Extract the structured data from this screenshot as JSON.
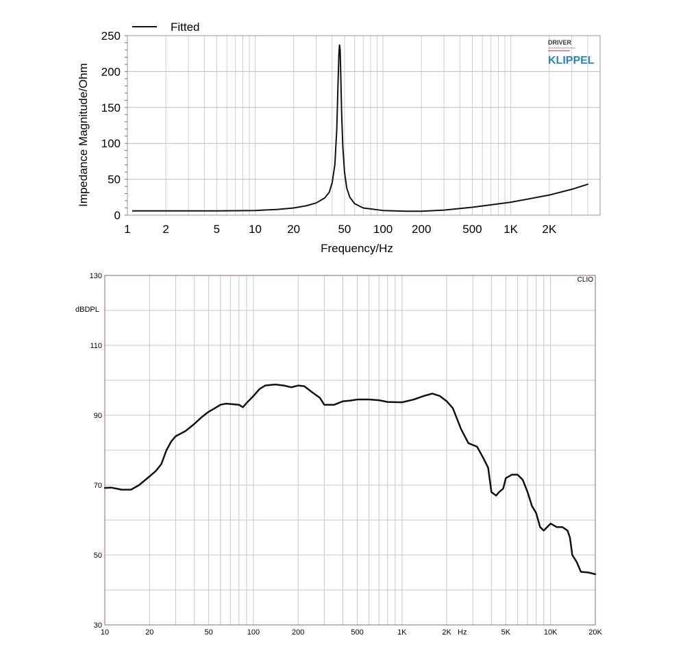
{
  "chart_data": [
    {
      "type": "line",
      "xscale": "log",
      "xlabel": "Frequency/Hz",
      "ylabel": "Impedance Magnitude/Ohm",
      "xlim": [
        1,
        5000
      ],
      "ylim": [
        0,
        250
      ],
      "x_ticks": [
        1,
        2,
        5,
        10,
        20,
        50,
        100,
        200,
        500,
        1000,
        2000
      ],
      "x_tick_labels": [
        "1",
        "2",
        "5",
        "10",
        "20",
        "50",
        "100",
        "200",
        "500",
        "1K",
        "2K"
      ],
      "y_ticks": [
        0,
        50,
        100,
        150,
        200,
        250
      ],
      "y_tick_labels": [
        "0",
        "50",
        "100",
        "150",
        "200",
        "250"
      ],
      "grid": true,
      "legend": "top-left",
      "series": [
        {
          "name": "Fitted",
          "color": "#111111",
          "x": [
            1.1,
            2,
            5,
            10,
            15,
            20,
            25,
            30,
            35,
            38,
            40,
            42,
            43.5,
            44.5,
            45.2,
            45.7,
            46.2,
            46.8,
            47.5,
            48.5,
            50,
            52,
            55,
            60,
            70,
            100,
            150,
            200,
            300,
            500,
            1000,
            2000,
            3000,
            4000
          ],
          "y": [
            6,
            6,
            6,
            6.5,
            8,
            10,
            13,
            17,
            24,
            32,
            45,
            70,
            120,
            185,
            225,
            237,
            230,
            190,
            140,
            95,
            60,
            38,
            25,
            16,
            10,
            6.5,
            5.5,
            5.5,
            7,
            11,
            18,
            28,
            36,
            43
          ]
        }
      ],
      "logo_text": [
        "DRIVER",
        "KLIPPEL"
      ]
    },
    {
      "type": "line",
      "xscale": "log",
      "ylabel": "dBDPL",
      "xlim": [
        10,
        20000
      ],
      "ylim": [
        30,
        130
      ],
      "x_ticks": [
        10,
        20,
        50,
        100,
        200,
        500,
        1000,
        2000,
        5000,
        10000,
        20000
      ],
      "x_tick_labels": [
        "10",
        "20",
        "50",
        "100",
        "200",
        "500",
        "1K",
        "2K",
        "5K",
        "10K",
        "20K"
      ],
      "x_unit": "Hz",
      "y_ticks": [
        30,
        50,
        70,
        90,
        110,
        130
      ],
      "y_tick_labels": [
        "30",
        "50",
        "70",
        "90",
        "110",
        "130"
      ],
      "grid": true,
      "brand": "CLIO",
      "series": [
        {
          "color": "#111111",
          "x": [
            10,
            11,
            12,
            13,
            15,
            17,
            20,
            22,
            24,
            26,
            28,
            30,
            35,
            40,
            45,
            50,
            55,
            60,
            65,
            70,
            80,
            85,
            90,
            100,
            110,
            120,
            140,
            160,
            180,
            200,
            220,
            250,
            280,
            300,
            350,
            400,
            450,
            500,
            600,
            700,
            800,
            1000,
            1200,
            1400,
            1600,
            1800,
            2000,
            2200,
            2500,
            2800,
            3200,
            3500,
            3800,
            4000,
            4300,
            4500,
            4800,
            5000,
            5500,
            6000,
            6500,
            7000,
            7500,
            8000,
            8500,
            9000,
            10000,
            11000,
            12000,
            13000,
            13500,
            14000,
            15000,
            16000,
            18000,
            20000
          ],
          "y": [
            69.2,
            69.3,
            69,
            68.7,
            68.7,
            70,
            72.5,
            74,
            76,
            80,
            82.5,
            84,
            85.5,
            87.5,
            89.5,
            91,
            92,
            93,
            93.3,
            93.2,
            93,
            92.3,
            93.5,
            95.5,
            97.5,
            98.5,
            98.8,
            98.5,
            98,
            98.5,
            98.3,
            96.5,
            95,
            93,
            93,
            94,
            94.2,
            94.5,
            94.5,
            94.3,
            93.8,
            93.7,
            94.5,
            95.5,
            96.2,
            95.5,
            94,
            92,
            86,
            82,
            81,
            78,
            75,
            68,
            67,
            68,
            69,
            72,
            73,
            73,
            71.5,
            68,
            64,
            62,
            58,
            57,
            59,
            58,
            58,
            57,
            55,
            50,
            48,
            45.2,
            45,
            44.5
          ]
        }
      ]
    }
  ]
}
